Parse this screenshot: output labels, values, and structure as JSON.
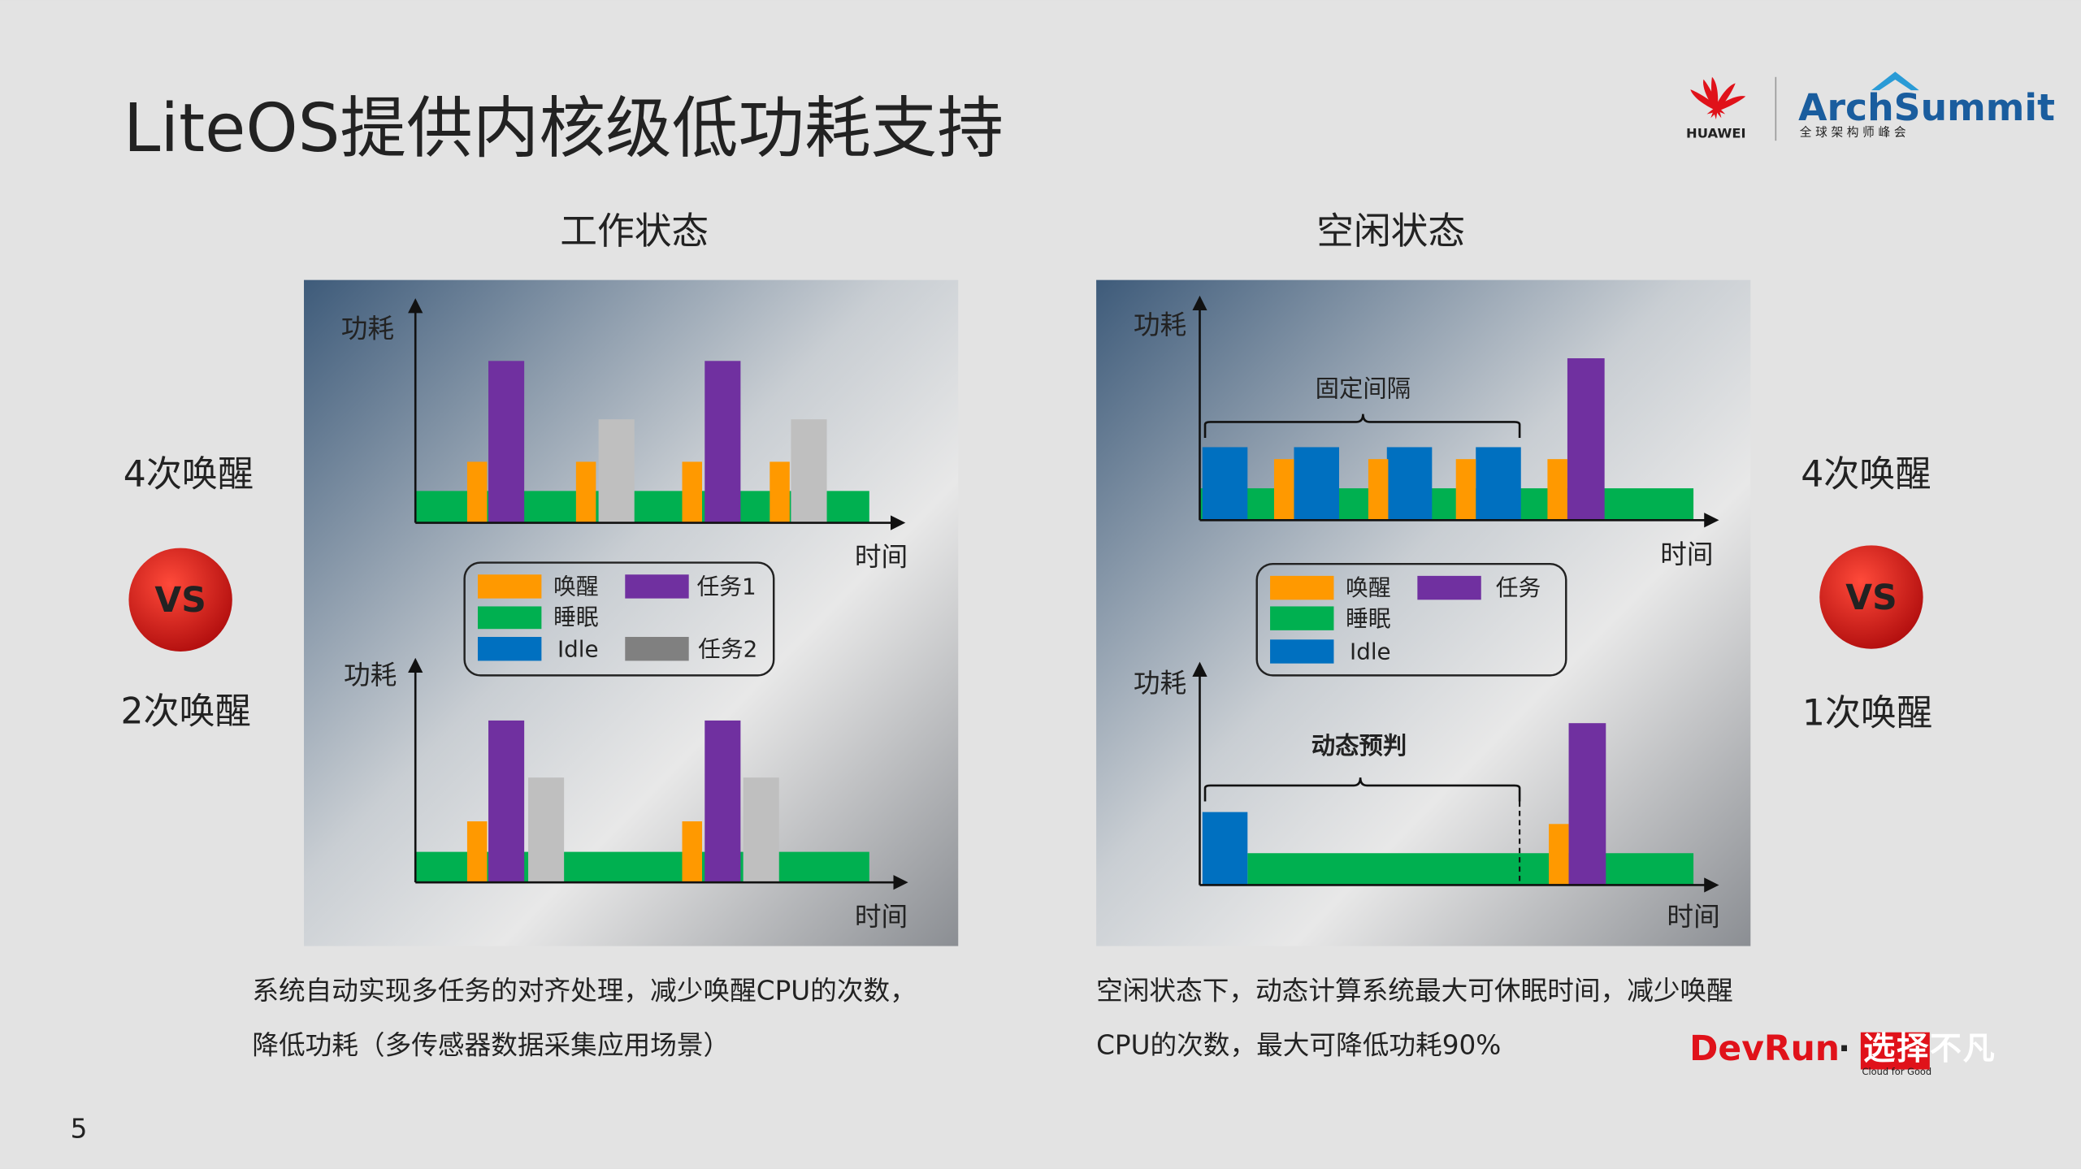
{
  "header": {
    "title": "LiteOS提供内核级低功耗支持",
    "page_number": "5"
  },
  "logos": {
    "huawei": "HUAWEI",
    "arch_summit": "ArchSummit",
    "arch_summit_sub": "全 球 架 构 师 峰 会",
    "devrun": "DevRun",
    "dot": "·",
    "slogan": "选择不凡",
    "slogan_sub": "Cloud for Good"
  },
  "panels": [
    {
      "heading": "工作状态",
      "top_wakeups": "4次唤醒",
      "vs": "VS",
      "bottom_wakeups": "2次唤醒",
      "y_axis_label": "功耗",
      "x_axis_label": "时间",
      "legend": [
        "唤醒",
        "任务1",
        "睡眠",
        "Idle",
        "任务2"
      ],
      "caption": [
        "系统自动实现多任务的对齐处理，减少唤醒CPU的次数，",
        "降低功耗（多传感器数据采集应用场景）"
      ]
    },
    {
      "heading": "空闲状态",
      "top_wakeups": "4次唤醒",
      "vs": "VS",
      "bottom_wakeups": "1次唤醒",
      "y_axis_label": "功耗",
      "x_axis_label": "时间",
      "top_bracket": "固定间隔",
      "bottom_bracket": "动态预判",
      "legend": [
        "唤醒",
        "任务",
        "睡眠",
        "Idle"
      ],
      "caption": [
        "空闲状态下，动态计算系统最大可休眠时间，减少唤醒",
        "CPU的次数，最大可降低功耗90%"
      ]
    }
  ]
}
